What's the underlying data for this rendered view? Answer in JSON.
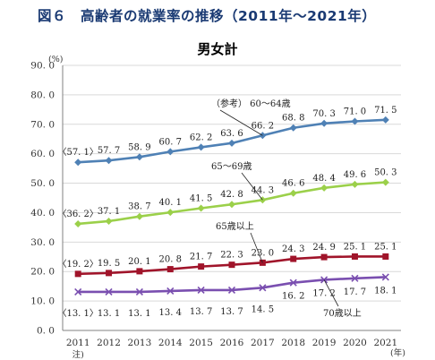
{
  "figure_title": "図６　高齢者の就業率の推移（2011年～2021年）",
  "chart_data": {
    "type": "line",
    "title": "男女計",
    "y_unit_label": "(%)",
    "x_unit_label": "(年)",
    "x_note": "注)",
    "ylim": [
      0,
      90
    ],
    "yticks": [
      "0. 0",
      "10. 0",
      "20. 0",
      "30. 0",
      "40. 0",
      "50. 0",
      "60. 0",
      "70. 0",
      "80. 0",
      "90. 0"
    ],
    "categories": [
      "2011",
      "2012",
      "2013",
      "2014",
      "2015",
      "2016",
      "2017",
      "2018",
      "2019",
      "2020",
      "2021"
    ],
    "grid": true,
    "series": [
      {
        "name": "（参考） 60～64歳",
        "color": "#4f81b5",
        "marker": "diamond",
        "values": [
          57.1,
          57.7,
          58.9,
          60.7,
          62.2,
          63.6,
          66.2,
          68.8,
          70.3,
          71.0,
          71.5
        ],
        "labels": [
          "〈57. 1〉",
          "57. 7",
          "58. 9",
          "60. 7",
          "62. 2",
          "63. 6",
          "66. 2",
          "68. 8",
          "70. 3",
          "71. 0",
          "71. 5"
        ]
      },
      {
        "name": "65～69歳",
        "color": "#9bd04a",
        "marker": "diamond",
        "values": [
          36.2,
          37.1,
          38.7,
          40.1,
          41.5,
          42.8,
          44.3,
          46.6,
          48.4,
          49.6,
          50.3
        ],
        "labels": [
          "〈36. 2〉",
          "37. 1",
          "38. 7",
          "40. 1",
          "41. 5",
          "42. 8",
          "44. 3",
          "46. 6",
          "48. 4",
          "49. 6",
          "50. 3"
        ]
      },
      {
        "name": "65歳以上",
        "color": "#a0142a",
        "marker": "square",
        "values": [
          19.2,
          19.5,
          20.1,
          20.8,
          21.7,
          22.3,
          23.0,
          24.3,
          24.9,
          25.1,
          25.1
        ],
        "labels": [
          "〈19. 2〉",
          "19. 5",
          "20. 1",
          "20. 8",
          "21. 7",
          "22. 3",
          "23. 0",
          "24. 3",
          "24. 9",
          "25. 1",
          "25. 1"
        ]
      },
      {
        "name": "70歳以上",
        "color": "#7a4fb0",
        "marker": "cross",
        "values": [
          13.1,
          13.1,
          13.1,
          13.4,
          13.7,
          13.7,
          14.5,
          16.2,
          17.2,
          17.7,
          18.1
        ],
        "labels": [
          "〈13. 1〉",
          "13. 1",
          "13. 1",
          "13. 4",
          "13. 7",
          "13. 7",
          "14. 5",
          "16. 2",
          "17. 2",
          "17. 7",
          "18. 1"
        ]
      }
    ]
  }
}
